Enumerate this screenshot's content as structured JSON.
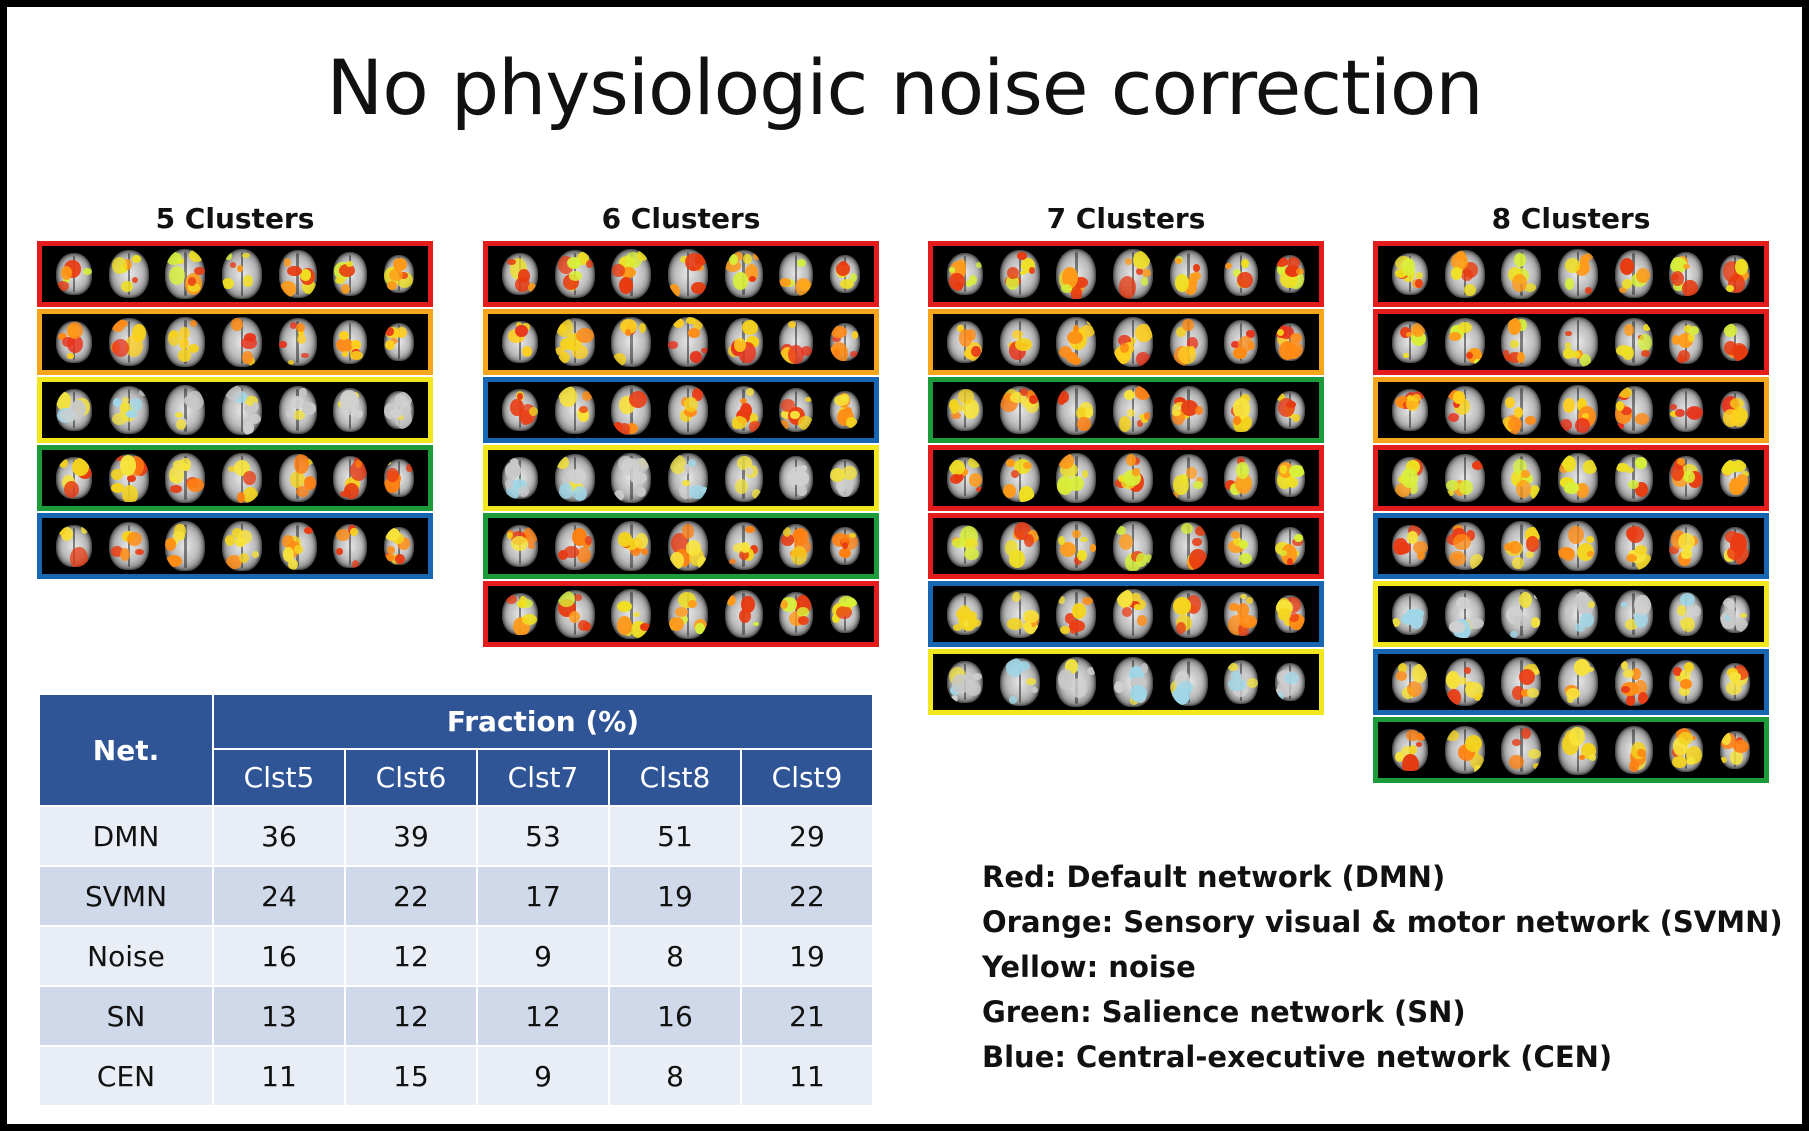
{
  "title": "No physiologic noise correction",
  "colors": {
    "red": "#e51c1c",
    "orange": "#f5a61a",
    "yellow": "#f2e61d",
    "green": "#1c9b3a",
    "blue": "#1766b2",
    "table_header": "#2f5597"
  },
  "cluster_panels": [
    {
      "title": "5 Clusters",
      "strips": [
        "red",
        "orange",
        "yellow",
        "green",
        "blue"
      ]
    },
    {
      "title": "6 Clusters",
      "strips": [
        "red",
        "orange",
        "blue",
        "yellow",
        "green",
        "red"
      ]
    },
    {
      "title": "7 Clusters",
      "strips": [
        "red",
        "orange",
        "green",
        "red",
        "red",
        "blue",
        "yellow"
      ]
    },
    {
      "title": "8 Clusters",
      "strips": [
        "red",
        "red",
        "orange",
        "red",
        "blue",
        "yellow",
        "blue",
        "green"
      ]
    }
  ],
  "table": {
    "net_header": "Net.",
    "fraction_header": "Fraction (%)",
    "columns": [
      "Clst5",
      "Clst6",
      "Clst7",
      "Clst8",
      "Clst9"
    ],
    "rows": [
      {
        "net": "DMN",
        "values": [
          "36",
          "39",
          "53",
          "51",
          "29"
        ]
      },
      {
        "net": "SVMN",
        "values": [
          "24",
          "22",
          "17",
          "19",
          "22"
        ]
      },
      {
        "net": "Noise",
        "values": [
          "16",
          "12",
          "9",
          "8",
          "19"
        ]
      },
      {
        "net": "SN",
        "values": [
          "13",
          "12",
          "12",
          "16",
          "21"
        ]
      },
      {
        "net": "CEN",
        "values": [
          "11",
          "15",
          "9",
          "8",
          "11"
        ]
      }
    ]
  },
  "legend": [
    "Red: Default network (DMN)",
    "Orange: Sensory visual & motor network (SVMN)",
    "Yellow: noise",
    "Green: Salience network (SN)",
    "Blue: Central-executive network (CEN)"
  ]
}
